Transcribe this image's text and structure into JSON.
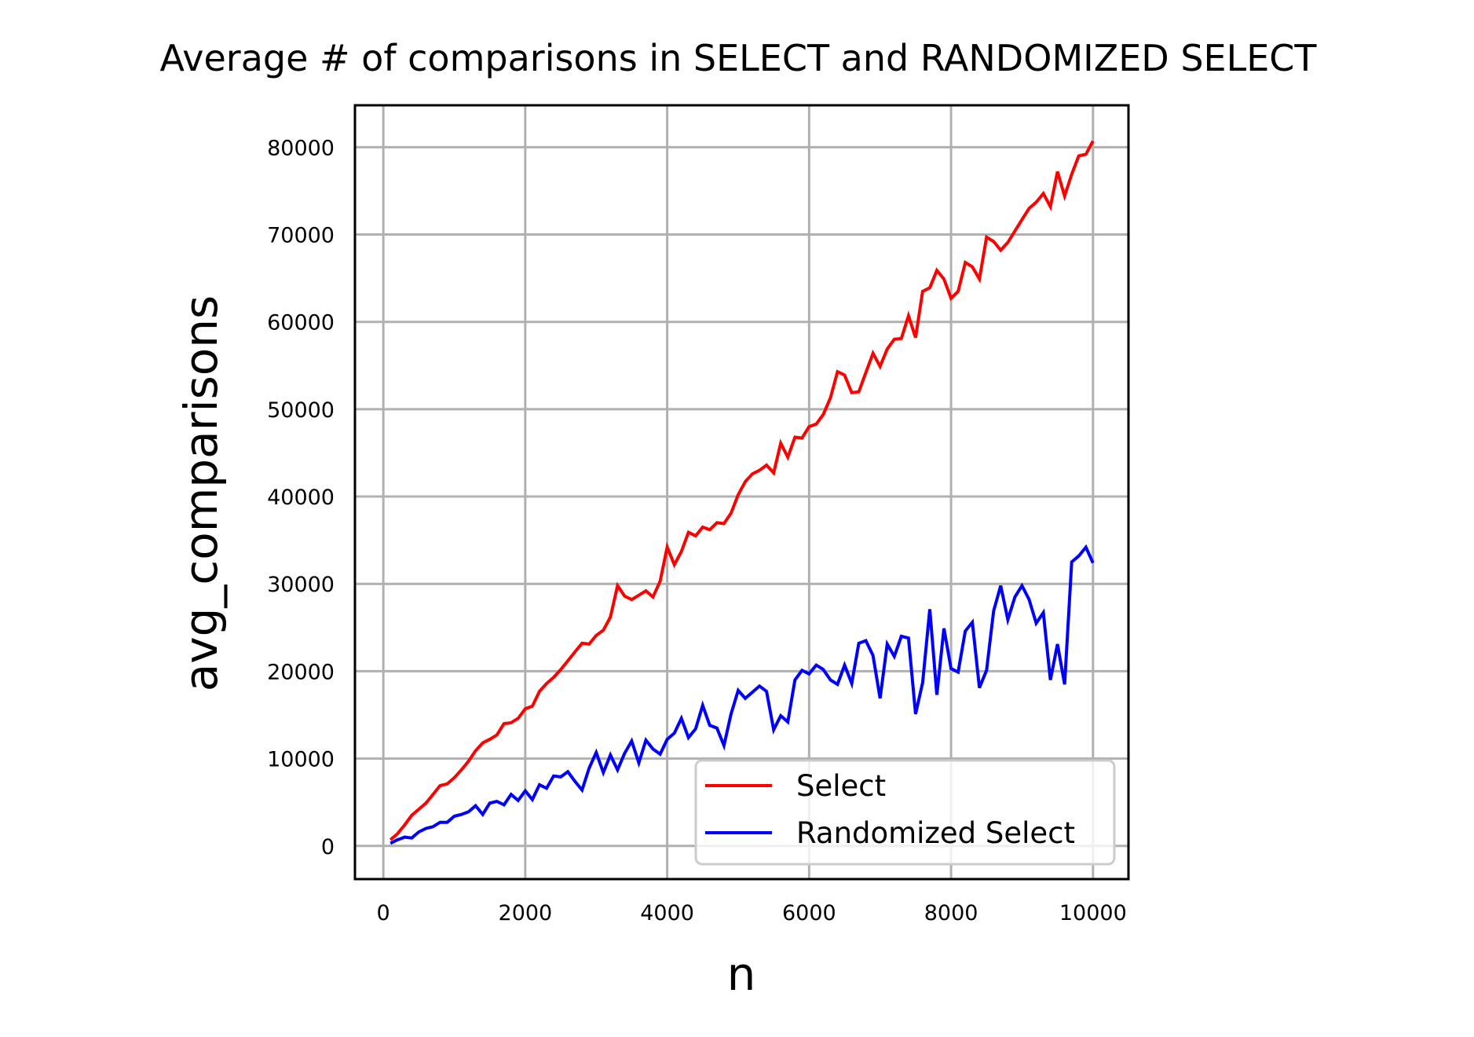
{
  "chart_data": {
    "type": "line",
    "title": "Average # of comparisons in SELECT and RANDOMIZED SELECT",
    "xlabel": "n",
    "ylabel": "avg_comparisons",
    "xlim": [
      -400,
      10500
    ],
    "ylim": [
      -3800,
      84800
    ],
    "xticks": [
      0,
      2000,
      4000,
      6000,
      8000,
      10000
    ],
    "yticks": [
      0,
      10000,
      20000,
      30000,
      40000,
      50000,
      60000,
      70000,
      80000
    ],
    "grid": true,
    "legend": {
      "position": "bottom-right",
      "entries": [
        "Select",
        "Randomized Select"
      ]
    },
    "colors": {
      "Select": "#ff0000",
      "Randomized Select": "#0000ff",
      "grid": "#b0b0b0"
    },
    "x": [
      100,
      200,
      300,
      400,
      500,
      600,
      700,
      800,
      900,
      1000,
      1100,
      1200,
      1300,
      1400,
      1500,
      1600,
      1700,
      1800,
      1900,
      2000,
      2100,
      2200,
      2300,
      2400,
      2500,
      2600,
      2700,
      2800,
      2900,
      3000,
      3100,
      3200,
      3300,
      3400,
      3500,
      3600,
      3700,
      3800,
      3900,
      4000,
      4100,
      4200,
      4300,
      4400,
      4500,
      4600,
      4700,
      4800,
      4900,
      5000,
      5100,
      5200,
      5300,
      5400,
      5500,
      5600,
      5700,
      5800,
      5900,
      6000,
      6100,
      6200,
      6300,
      6400,
      6500,
      6600,
      6700,
      6800,
      6900,
      7000,
      7100,
      7200,
      7300,
      7400,
      7500,
      7600,
      7700,
      7800,
      7900,
      8000,
      8100,
      8200,
      8300,
      8400,
      8500,
      8600,
      8700,
      8800,
      8900,
      9000,
      9100,
      9200,
      9300,
      9400,
      9500,
      9600,
      9700,
      9800,
      9900,
      10000
    ],
    "series": [
      {
        "name": "Select",
        "values": [
          700,
          1400,
          2400,
          3500,
          4200,
          4900,
          5900,
          6900,
          7100,
          7800,
          8700,
          9700,
          10900,
          11800,
          12200,
          12700,
          14000,
          14100,
          14600,
          15700,
          16000,
          17700,
          18600,
          19300,
          20200,
          21200,
          22200,
          23200,
          23100,
          24100,
          24700,
          26200,
          29800,
          28600,
          28200,
          28700,
          29200,
          28500,
          30300,
          34200,
          32200,
          33700,
          35900,
          35500,
          36500,
          36200,
          37000,
          36900,
          38100,
          40200,
          41700,
          42600,
          43000,
          43600,
          42700,
          46100,
          44500,
          46800,
          46700,
          48000,
          48300,
          49400,
          51300,
          54300,
          53900,
          51900,
          52000,
          54200,
          56400,
          54900,
          56900,
          58000,
          58100,
          60700,
          58200,
          63500,
          63900,
          65900,
          64900,
          62700,
          63500,
          66800,
          66300,
          64900,
          69700,
          69200,
          68200,
          69100,
          70400,
          71700,
          73000,
          73700,
          74700,
          73200,
          77200,
          74400,
          76900,
          79000,
          79200,
          80700
        ]
      },
      {
        "name": "Randomized Select",
        "values": [
          300,
          700,
          1000,
          900,
          1600,
          2000,
          2200,
          2700,
          2700,
          3400,
          3600,
          3900,
          4600,
          3600,
          4900,
          5100,
          4700,
          5900,
          5200,
          6300,
          5300,
          7000,
          6600,
          8000,
          7900,
          8500,
          7400,
          6400,
          8900,
          10700,
          8400,
          10400,
          8700,
          10600,
          12000,
          9500,
          12100,
          11100,
          10500,
          12200,
          12900,
          14600,
          12400,
          13400,
          16100,
          13800,
          13500,
          11500,
          15100,
          17800,
          16900,
          17600,
          18300,
          17700,
          13300,
          14900,
          14200,
          19000,
          20100,
          19700,
          20700,
          20200,
          19000,
          18500,
          20700,
          18600,
          23200,
          23500,
          21800,
          16900,
          23100,
          21700,
          24000,
          23800,
          15100,
          18700,
          27100,
          17300,
          24900,
          20300,
          19900,
          24600,
          25600,
          18100,
          20100,
          26900,
          29800,
          25900,
          28500,
          29800,
          28200,
          25500,
          26700,
          19000,
          23100,
          18500,
          32500,
          33200,
          34200,
          32400
        ]
      }
    ]
  }
}
